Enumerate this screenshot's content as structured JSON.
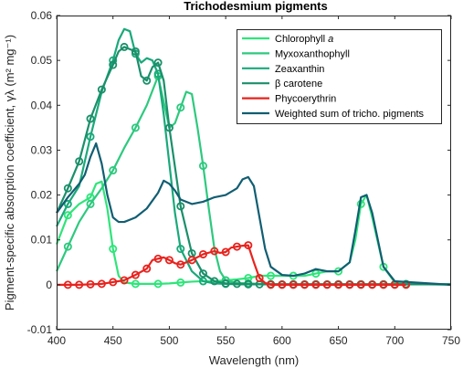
{
  "chart_data": {
    "type": "line",
    "title": "Trichodesmium pigments",
    "xlabel": "Wavelength (nm)",
    "ylabel": "Pigment-specific absorption coefficient, γλ (m² mg⁻¹)",
    "xlim": [
      400,
      750
    ],
    "ylim": [
      -0.01,
      0.06
    ],
    "x_ticks": [
      400,
      450,
      500,
      550,
      600,
      650,
      700,
      750
    ],
    "y_ticks": [
      -0.01,
      0,
      0.01,
      0.02,
      0.03,
      0.04,
      0.05,
      0.06
    ],
    "x_tick_labels": [
      "400",
      "450",
      "500",
      "550",
      "600",
      "650",
      "700",
      "750"
    ],
    "y_tick_labels": [
      "-0.01",
      "0",
      "0.01",
      "0.02",
      "0.03",
      "0.04",
      "0.05",
      "0.06"
    ],
    "grid": false,
    "legend_position": "top-right",
    "series": [
      {
        "name": "Chlorophyll a",
        "color": "#2ee57a",
        "marker_every": 20,
        "x": [
          400,
          410,
          420,
          430,
          435,
          440,
          445,
          450,
          455,
          460,
          470,
          480,
          490,
          500,
          510,
          520,
          530,
          540,
          550,
          560,
          570,
          580,
          590,
          600,
          610,
          620,
          630,
          640,
          650,
          660,
          665,
          670,
          675,
          680,
          690,
          700,
          710,
          750
        ],
        "y": [
          0.009,
          0.0155,
          0.018,
          0.0195,
          0.0225,
          0.023,
          0.017,
          0.008,
          0.002,
          0.0005,
          0.0002,
          0.0002,
          0.0002,
          0.0003,
          0.0005,
          0.0007,
          0.0008,
          0.0008,
          0.001,
          0.0012,
          0.0015,
          0.002,
          0.002,
          0.002,
          0.002,
          0.002,
          0.0025,
          0.003,
          0.003,
          0.005,
          0.01,
          0.018,
          0.02,
          0.015,
          0.004,
          0.0005,
          0.0002,
          0.0
        ]
      },
      {
        "name": "Myxoxanthophyll",
        "color": "#2dc97e",
        "marker_every": 20,
        "x": [
          400,
          410,
          420,
          430,
          440,
          450,
          460,
          470,
          480,
          490,
          500,
          505,
          510,
          515,
          520,
          525,
          530,
          535,
          540,
          545,
          550,
          560,
          580,
          600,
          650,
          700,
          750
        ],
        "y": [
          0.003,
          0.0085,
          0.014,
          0.018,
          0.0215,
          0.0255,
          0.0305,
          0.035,
          0.04,
          0.0465,
          0.035,
          0.036,
          0.0395,
          0.043,
          0.0425,
          0.035,
          0.0265,
          0.017,
          0.008,
          0.003,
          0.001,
          0.0004,
          0.0002,
          0.0001,
          0.0001,
          0.0001,
          0.0001
        ]
      },
      {
        "name": "Zeaxanthin",
        "color": "#19a97a",
        "marker_every": 20,
        "x": [
          400,
          410,
          420,
          430,
          440,
          450,
          455,
          460,
          465,
          470,
          475,
          480,
          485,
          490,
          495,
          500,
          505,
          510,
          520,
          530,
          540,
          550,
          560,
          580,
          600,
          650,
          700,
          750
        ],
        "y": [
          0.013,
          0.018,
          0.022,
          0.033,
          0.043,
          0.05,
          0.0545,
          0.057,
          0.0565,
          0.0515,
          0.0495,
          0.0505,
          0.05,
          0.047,
          0.038,
          0.027,
          0.016,
          0.008,
          0.003,
          0.0008,
          0.0003,
          0.0002,
          0.0001,
          0.0001,
          0.0001,
          0.0001,
          0.0001,
          0.0001
        ]
      },
      {
        "name": "β carotene",
        "color": "#1a8f6a",
        "marker_every": 10,
        "x": [
          400,
          410,
          420,
          430,
          440,
          450,
          455,
          460,
          465,
          470,
          475,
          480,
          485,
          490,
          495,
          500,
          510,
          520,
          530,
          540,
          550,
          560,
          580,
          600,
          650,
          700,
          750
        ],
        "y": [
          0.016,
          0.0215,
          0.0275,
          0.037,
          0.0435,
          0.049,
          0.052,
          0.053,
          0.0525,
          0.052,
          0.0465,
          0.0455,
          0.0485,
          0.0495,
          0.0455,
          0.035,
          0.0175,
          0.007,
          0.0025,
          0.0008,
          0.0003,
          0.0002,
          0.0001,
          0.0001,
          0.0001,
          0.0001,
          0.0001
        ]
      },
      {
        "name": "Phycoerythrin",
        "color": "#e8231e",
        "marker_every": 10,
        "x": [
          400,
          410,
          420,
          430,
          440,
          450,
          460,
          470,
          480,
          485,
          490,
          495,
          500,
          505,
          510,
          520,
          530,
          540,
          545,
          550,
          555,
          560,
          565,
          570,
          575,
          580,
          585,
          590,
          600,
          610,
          620,
          650,
          700,
          710
        ],
        "y": [
          0.0,
          0.0,
          0.0,
          0.0001,
          0.0002,
          0.0006,
          0.001,
          0.0022,
          0.0036,
          0.0055,
          0.0058,
          0.0061,
          0.0055,
          0.0048,
          0.0045,
          0.0055,
          0.0068,
          0.0075,
          0.0071,
          0.0073,
          0.0083,
          0.0085,
          0.0087,
          0.0088,
          0.005,
          0.0015,
          0.0004,
          0.0,
          0.0,
          0.0,
          0.0,
          0.0,
          0.0,
          0.0
        ]
      },
      {
        "name": "Weighted sum of tricho. pigments",
        "color": "#115e72",
        "marker_every": 0,
        "x": [
          400,
          410,
          420,
          425,
          430,
          435,
          440,
          445,
          450,
          455,
          460,
          465,
          470,
          480,
          490,
          495,
          500,
          505,
          510,
          520,
          530,
          540,
          550,
          560,
          565,
          570,
          575,
          580,
          585,
          590,
          600,
          610,
          620,
          630,
          640,
          650,
          660,
          665,
          670,
          675,
          680,
          690,
          700,
          750
        ],
        "y": [
          0.016,
          0.0195,
          0.0225,
          0.0245,
          0.0285,
          0.0315,
          0.027,
          0.02,
          0.015,
          0.014,
          0.014,
          0.0145,
          0.015,
          0.017,
          0.0205,
          0.0232,
          0.0225,
          0.021,
          0.019,
          0.018,
          0.0185,
          0.0195,
          0.02,
          0.0215,
          0.0235,
          0.024,
          0.022,
          0.015,
          0.008,
          0.004,
          0.0022,
          0.002,
          0.0025,
          0.0035,
          0.003,
          0.003,
          0.005,
          0.012,
          0.0195,
          0.02,
          0.016,
          0.004,
          0.0008,
          0.0
        ]
      }
    ]
  }
}
